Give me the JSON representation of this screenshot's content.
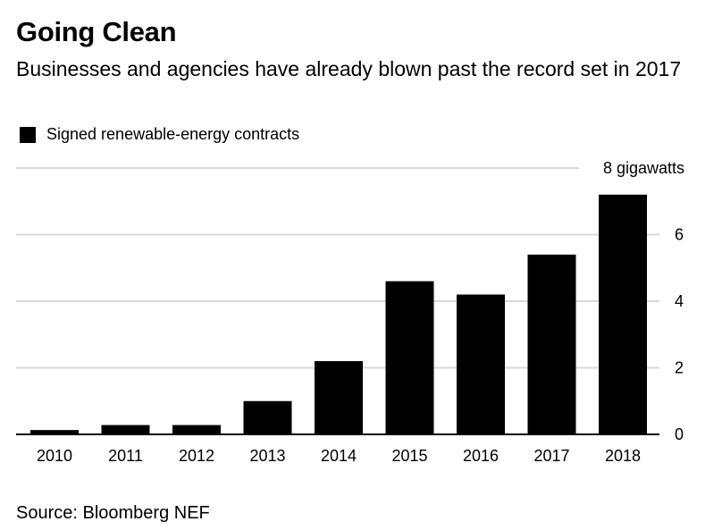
{
  "header": {
    "title": "Going Clean",
    "subtitle": "Businesses and agencies have already blown past the record set in 2017"
  },
  "footer": {
    "source": "Source: Bloomberg NEF"
  },
  "colors": {
    "bar": "#000000",
    "grid": "#d9d9d9",
    "axis": "#000000",
    "text": "#000000"
  },
  "chart_data": {
    "type": "bar",
    "title": "Going Clean",
    "subtitle": "Businesses and agencies have already blown past the record set in 2017",
    "categories": [
      "2010",
      "2011",
      "2012",
      "2013",
      "2014",
      "2015",
      "2016",
      "2017",
      "2018"
    ],
    "series": [
      {
        "name": "Signed renewable-energy contracts",
        "values": [
          0.13,
          0.28,
          0.28,
          1.0,
          2.2,
          4.6,
          4.2,
          5.4,
          7.2
        ]
      }
    ],
    "ylim": [
      0,
      8
    ],
    "yticks": [
      0,
      2,
      4,
      6,
      8
    ],
    "ytick_labels": [
      "0",
      "2",
      "4",
      "6",
      "8 gigawatts"
    ],
    "y_axis_position": "right",
    "grid": true,
    "legend_position": "top-left",
    "source": "Source: Bloomberg NEF"
  }
}
